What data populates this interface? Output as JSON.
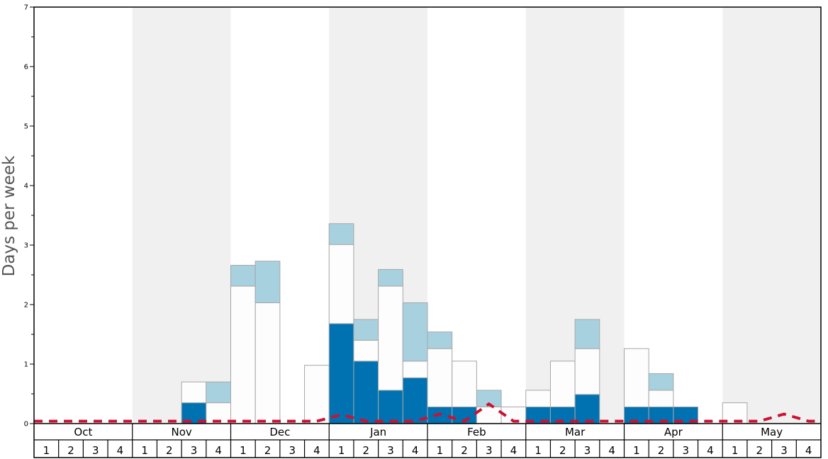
{
  "chart_data": {
    "type": "bar",
    "stacked": true,
    "ylabel": "Days per week",
    "ylim": [
      0,
      7
    ],
    "yticks": [
      "0",
      "1",
      "2",
      "3",
      "4",
      "5",
      "6",
      "7"
    ],
    "months": [
      "Oct",
      "Nov",
      "Dec",
      "Jan",
      "Feb",
      "Mar",
      "Apr",
      "May"
    ],
    "weeks": [
      "1",
      "2",
      "3",
      "4"
    ],
    "colors": {
      "series_dark": "#0072b2",
      "series_white": "#fdfdfd",
      "series_light": "#a8d1df",
      "band_shade": "#f0f0f0",
      "dashed_line": "#cc1133",
      "bar_outline": "#a6a6a6"
    },
    "series": [
      {
        "key": "dark",
        "values": [
          0,
          0,
          0,
          0,
          0,
          0,
          0.35,
          0,
          0,
          0,
          0,
          0,
          1.68,
          1.05,
          0.56,
          0.77,
          0.28,
          0.28,
          0,
          0,
          0.28,
          0.28,
          0.49,
          0,
          0.28,
          0.28,
          0.28,
          0,
          0,
          0,
          0,
          0
        ]
      },
      {
        "key": "white",
        "values": [
          0,
          0,
          0,
          0,
          0,
          0,
          0.35,
          0.35,
          2.31,
          2.03,
          0,
          0.98,
          1.33,
          0.35,
          1.75,
          0.28,
          0.98,
          0.77,
          0.28,
          0.28,
          0.28,
          0.77,
          0.77,
          0,
          0.98,
          0.28,
          0,
          0,
          0.35,
          0,
          0,
          0
        ]
      },
      {
        "key": "light",
        "values": [
          0,
          0,
          0,
          0,
          0,
          0,
          0,
          0.35,
          0.35,
          0.7,
          0,
          0,
          0.35,
          0.35,
          0.28,
          0.98,
          0.28,
          0,
          0.28,
          0,
          0,
          0,
          0.49,
          0,
          0,
          0.28,
          0,
          0,
          0,
          0,
          0,
          0
        ]
      }
    ],
    "dashed_line": {
      "values": [
        0.04,
        0.04,
        0.04,
        0.04,
        0.04,
        0.04,
        0.04,
        0.04,
        0.04,
        0.04,
        0.04,
        0.04,
        0.15,
        0.04,
        0.04,
        0.04,
        0.16,
        0.04,
        0.33,
        0.04,
        0.04,
        0.04,
        0.04,
        0.04,
        0.04,
        0.04,
        0.04,
        0.04,
        0.04,
        0.04,
        0.16,
        0.04
      ]
    },
    "grid": false,
    "legend": "none"
  }
}
